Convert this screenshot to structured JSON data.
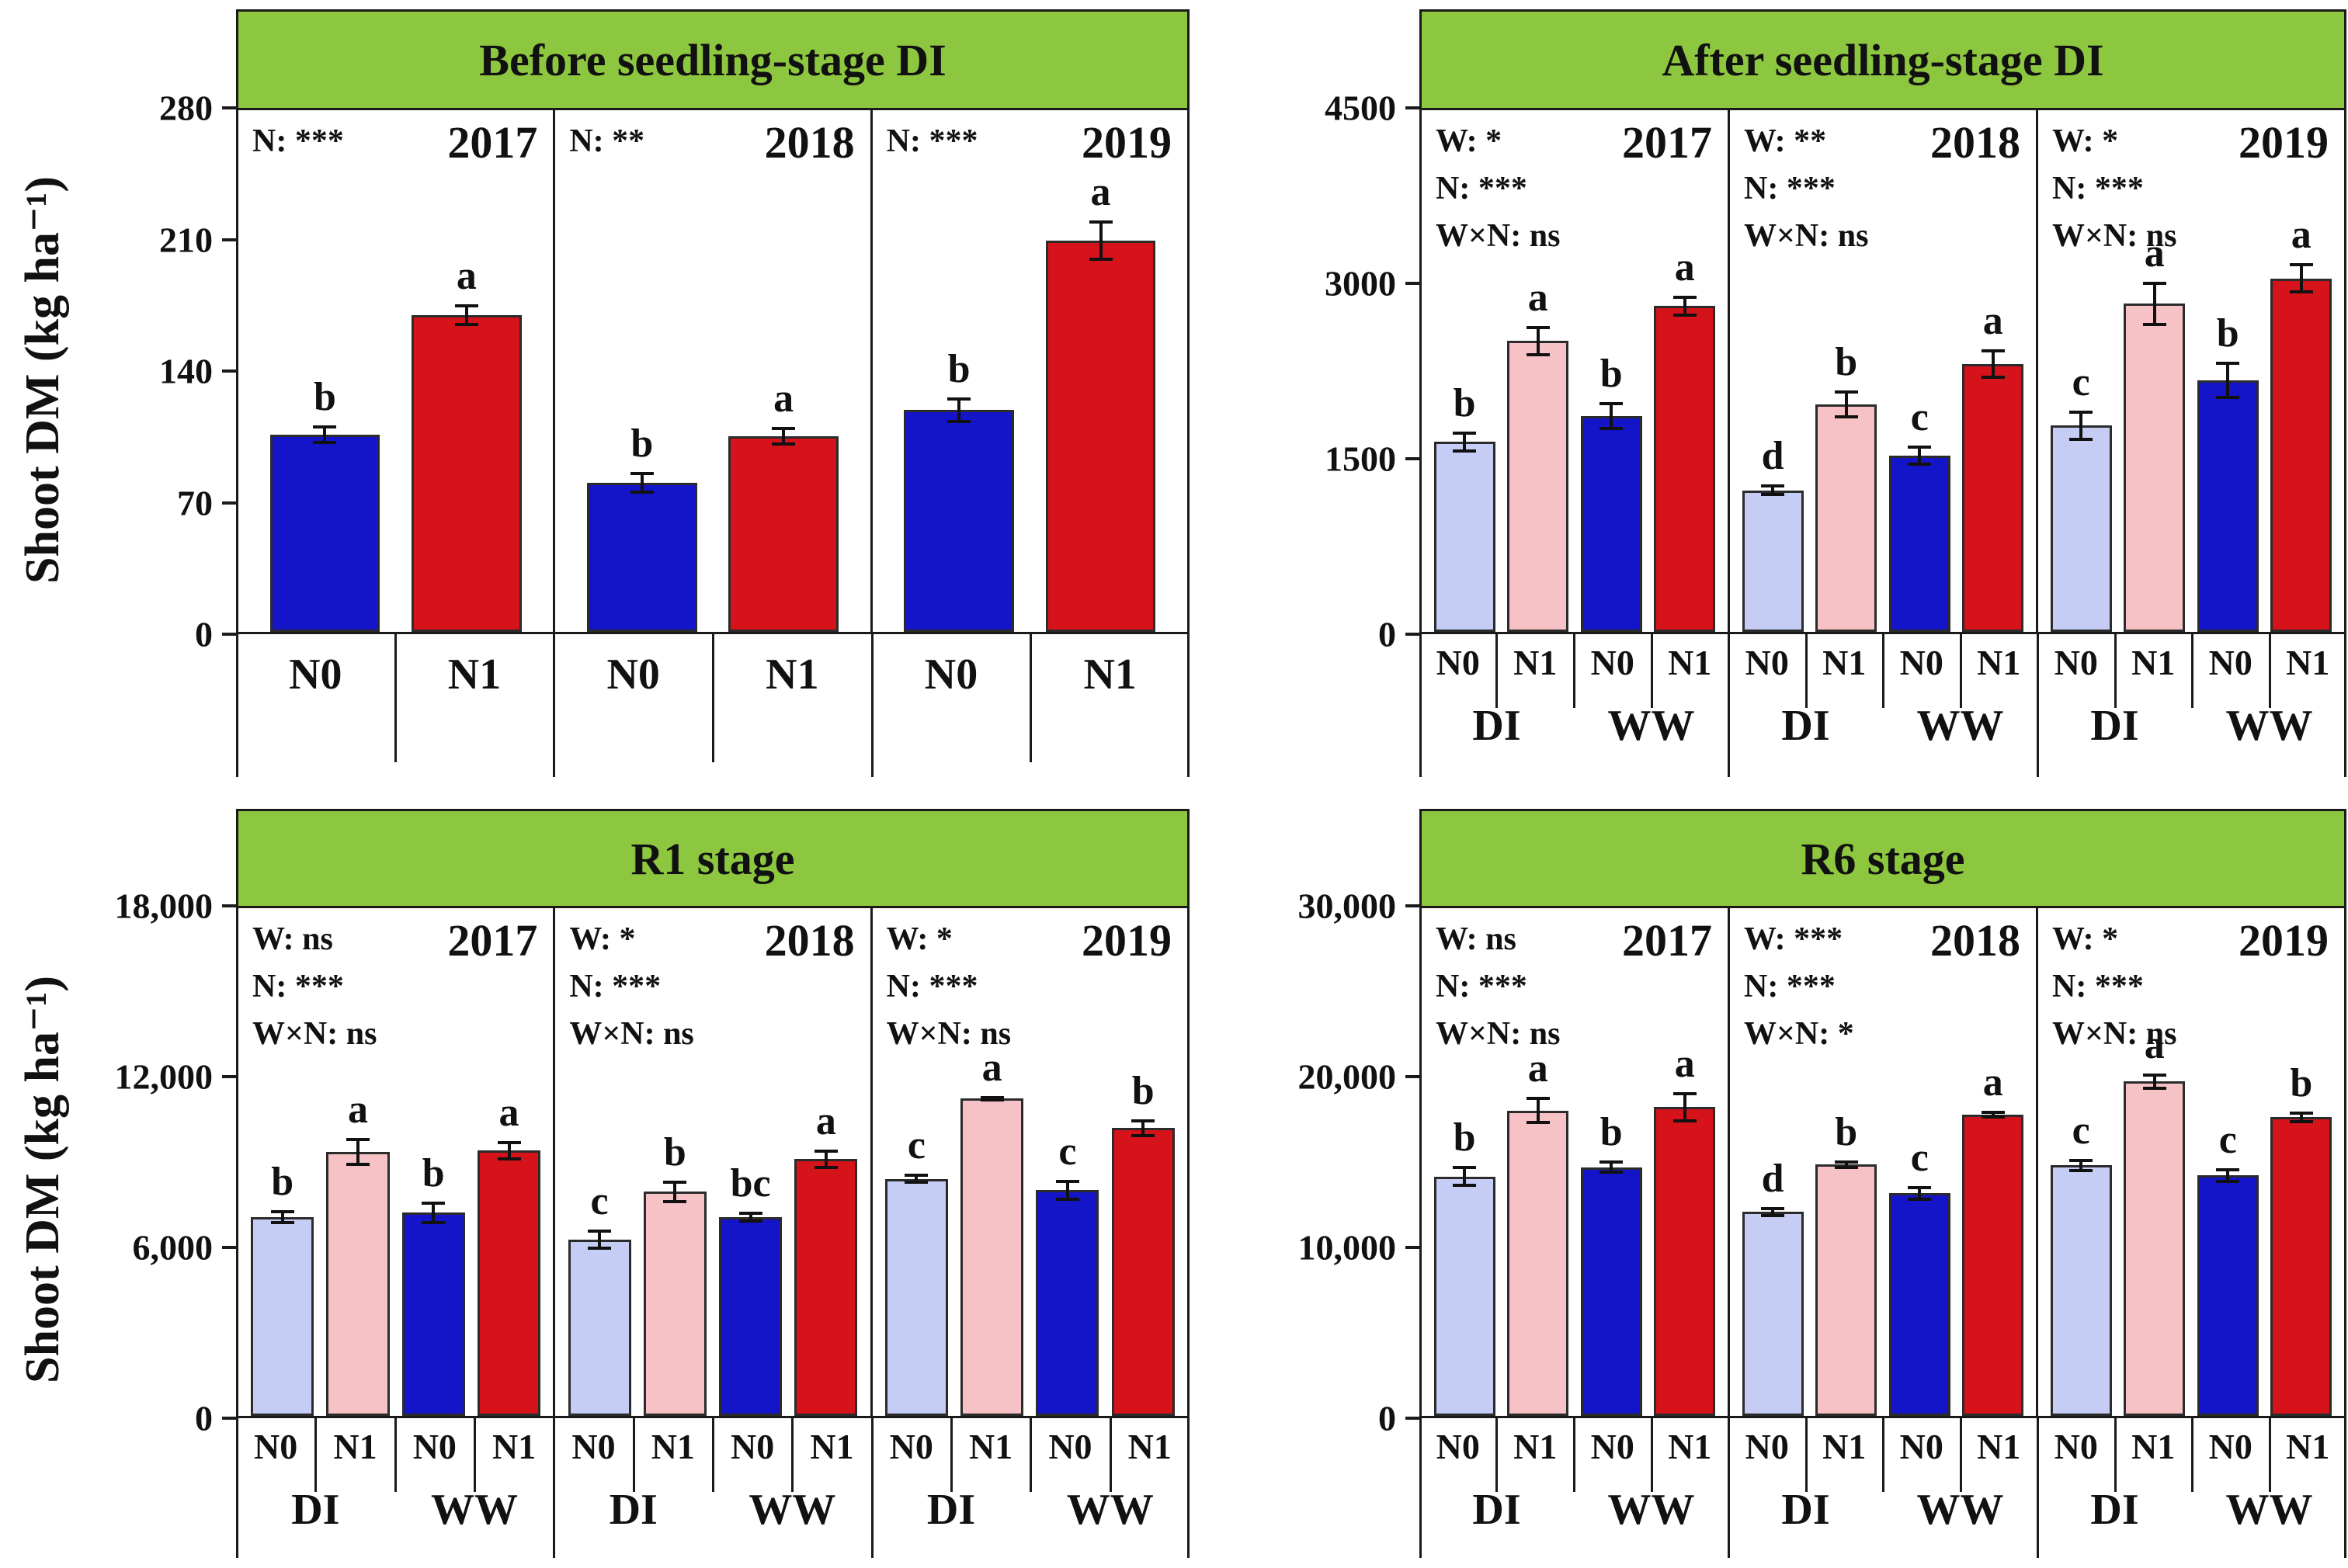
{
  "figure": {
    "y_axis_label": "Shoot DM (kg ha⁻¹)",
    "colors": {
      "header_green": "#8dc63f",
      "bar_dark_blue": "#1414c8",
      "bar_dark_red": "#d6121a",
      "bar_light_blue": "#c6cdf4",
      "bar_light_pink": "#f6c2c6",
      "bar_border": "#2b2b2b",
      "frame": "#1a1a1a"
    }
  },
  "chart_data": [
    {
      "type": "bar",
      "title": "Before seedling-stage DI",
      "ylabel": "Shoot DM (kg ha⁻¹)",
      "ylim": [
        0,
        280
      ],
      "grid": false,
      "layout": "two-bar",
      "yticks": [
        {
          "v": 0,
          "label": "0"
        },
        {
          "v": 70,
          "label": "70"
        },
        {
          "v": 140,
          "label": "140"
        },
        {
          "v": 210,
          "label": "210"
        },
        {
          "v": 280,
          "label": "280"
        }
      ],
      "years": [
        {
          "year": "2017",
          "stats": [
            "N: ***"
          ],
          "bars": [
            {
              "label": "N0",
              "color": "dark_blue",
              "value": 106,
              "error": 5,
              "letter": "b"
            },
            {
              "label": "N1",
              "color": "dark_red",
              "value": 170,
              "error": 6,
              "letter": "a"
            }
          ]
        },
        {
          "year": "2018",
          "stats": [
            "N: **"
          ],
          "bars": [
            {
              "label": "N0",
              "color": "dark_blue",
              "value": 80,
              "error": 6,
              "letter": "b"
            },
            {
              "label": "N1",
              "color": "dark_red",
              "value": 105,
              "error": 5,
              "letter": "a"
            }
          ]
        },
        {
          "year": "2019",
          "stats": [
            "N: ***"
          ],
          "bars": [
            {
              "label": "N0",
              "color": "dark_blue",
              "value": 119,
              "error": 7,
              "letter": "b"
            },
            {
              "label": "N1",
              "color": "dark_red",
              "value": 210,
              "error": 11,
              "letter": "a"
            }
          ]
        }
      ]
    },
    {
      "type": "bar",
      "title": "After seedling-stage DI",
      "ylabel": "Shoot DM (kg ha⁻¹)",
      "ylim": [
        0,
        4500
      ],
      "grid": false,
      "layout": "four-bar",
      "group_labels": [
        "DI",
        "WW"
      ],
      "yticks": [
        {
          "v": 0,
          "label": "0"
        },
        {
          "v": 1500,
          "label": "1500"
        },
        {
          "v": 3000,
          "label": "3000"
        },
        {
          "v": 4500,
          "label": "4500"
        }
      ],
      "years": [
        {
          "year": "2017",
          "stats": [
            "W: *",
            "N: ***",
            "W×N: ns"
          ],
          "bars": [
            {
              "group": "DI",
              "label": "N0",
              "color": "light_blue",
              "value": 1640,
              "error": 90,
              "letter": "b"
            },
            {
              "group": "DI",
              "label": "N1",
              "color": "light_pink",
              "value": 2510,
              "error": 130,
              "letter": "a"
            },
            {
              "group": "WW",
              "label": "N0",
              "color": "dark_blue",
              "value": 1860,
              "error": 120,
              "letter": "b"
            },
            {
              "group": "WW",
              "label": "N1",
              "color": "dark_red",
              "value": 2810,
              "error": 90,
              "letter": "a"
            }
          ]
        },
        {
          "year": "2018",
          "stats": [
            "W: **",
            "N: ***",
            "W×N: ns"
          ],
          "bars": [
            {
              "group": "DI",
              "label": "N0",
              "color": "light_blue",
              "value": 1220,
              "error": 50,
              "letter": "d"
            },
            {
              "group": "DI",
              "label": "N1",
              "color": "light_pink",
              "value": 1960,
              "error": 120,
              "letter": "b"
            },
            {
              "group": "WW",
              "label": "N0",
              "color": "dark_blue",
              "value": 1520,
              "error": 90,
              "letter": "c"
            },
            {
              "group": "WW",
              "label": "N1",
              "color": "dark_red",
              "value": 2310,
              "error": 130,
              "letter": "a"
            }
          ]
        },
        {
          "year": "2019",
          "stats": [
            "W: *",
            "N: ***",
            "W×N: ns"
          ],
          "bars": [
            {
              "group": "DI",
              "label": "N0",
              "color": "light_blue",
              "value": 1780,
              "error": 130,
              "letter": "c"
            },
            {
              "group": "DI",
              "label": "N1",
              "color": "light_pink",
              "value": 2830,
              "error": 190,
              "letter": "a"
            },
            {
              "group": "WW",
              "label": "N0",
              "color": "dark_blue",
              "value": 2170,
              "error": 160,
              "letter": "b"
            },
            {
              "group": "WW",
              "label": "N1",
              "color": "dark_red",
              "value": 3050,
              "error": 130,
              "letter": "a"
            }
          ]
        }
      ]
    },
    {
      "type": "bar",
      "title": "R1 stage",
      "ylabel": "Shoot DM (kg ha⁻¹)",
      "ylim": [
        0,
        18000
      ],
      "grid": false,
      "layout": "four-bar",
      "group_labels": [
        "DI",
        "WW"
      ],
      "yticks": [
        {
          "v": 0,
          "label": "0"
        },
        {
          "v": 6000,
          "label": "6,000"
        },
        {
          "v": 12000,
          "label": "12,000"
        },
        {
          "v": 18000,
          "label": "18,000"
        }
      ],
      "years": [
        {
          "year": "2017",
          "stats": [
            "W: ns",
            "N: ***",
            "W×N: ns"
          ],
          "bars": [
            {
              "group": "DI",
              "label": "N0",
              "color": "light_blue",
              "value": 7050,
              "error": 250,
              "letter": "b"
            },
            {
              "group": "DI",
              "label": "N1",
              "color": "light_pink",
              "value": 9350,
              "error": 500,
              "letter": "a"
            },
            {
              "group": "WW",
              "label": "N0",
              "color": "dark_blue",
              "value": 7200,
              "error": 400,
              "letter": "b"
            },
            {
              "group": "WW",
              "label": "N1",
              "color": "dark_red",
              "value": 9400,
              "error": 350,
              "letter": "a"
            }
          ]
        },
        {
          "year": "2018",
          "stats": [
            "W: *",
            "N: ***",
            "W×N: ns"
          ],
          "bars": [
            {
              "group": "DI",
              "label": "N0",
              "color": "light_blue",
              "value": 6250,
              "error": 350,
              "letter": "c"
            },
            {
              "group": "DI",
              "label": "N1",
              "color": "light_pink",
              "value": 7950,
              "error": 400,
              "letter": "b"
            },
            {
              "group": "WW",
              "label": "N0",
              "color": "dark_blue",
              "value": 7050,
              "error": 200,
              "letter": "bc"
            },
            {
              "group": "WW",
              "label": "N1",
              "color": "dark_red",
              "value": 9100,
              "error": 350,
              "letter": "a"
            }
          ]
        },
        {
          "year": "2019",
          "stats": [
            "W: *",
            "N: ***",
            "W×N: ns"
          ],
          "bars": [
            {
              "group": "DI",
              "label": "N0",
              "color": "light_blue",
              "value": 8400,
              "error": 180,
              "letter": "c"
            },
            {
              "group": "DI",
              "label": "N1",
              "color": "light_pink",
              "value": 11250,
              "error": 100,
              "letter": "a"
            },
            {
              "group": "WW",
              "label": "N0",
              "color": "dark_blue",
              "value": 8000,
              "error": 380,
              "letter": "c"
            },
            {
              "group": "WW",
              "label": "N1",
              "color": "dark_red",
              "value": 10200,
              "error": 320,
              "letter": "b"
            }
          ]
        }
      ]
    },
    {
      "type": "bar",
      "title": "R6 stage",
      "ylabel": "Shoot DM (kg ha⁻¹)",
      "ylim": [
        0,
        30000
      ],
      "grid": false,
      "layout": "four-bar",
      "group_labels": [
        "DI",
        "WW"
      ],
      "yticks": [
        {
          "v": 0,
          "label": "0"
        },
        {
          "v": 10000,
          "label": "10,000"
        },
        {
          "v": 20000,
          "label": "20,000"
        },
        {
          "v": 30000,
          "label": "30,000"
        }
      ],
      "years": [
        {
          "year": "2017",
          "stats": [
            "W: ns",
            "N: ***",
            "W×N: ns"
          ],
          "bars": [
            {
              "group": "DI",
              "label": "N0",
              "color": "light_blue",
              "value": 14150,
              "error": 600,
              "letter": "b"
            },
            {
              "group": "DI",
              "label": "N1",
              "color": "light_pink",
              "value": 18050,
              "error": 800,
              "letter": "a"
            },
            {
              "group": "WW",
              "label": "N0",
              "color": "dark_blue",
              "value": 14700,
              "error": 400,
              "letter": "b"
            },
            {
              "group": "WW",
              "label": "N1",
              "color": "dark_red",
              "value": 18250,
              "error": 900,
              "letter": "a"
            }
          ]
        },
        {
          "year": "2018",
          "stats": [
            "W: ***",
            "N: ***",
            "W×N: *"
          ],
          "bars": [
            {
              "group": "DI",
              "label": "N0",
              "color": "light_blue",
              "value": 12050,
              "error": 300,
              "letter": "d"
            },
            {
              "group": "DI",
              "label": "N1",
              "color": "light_pink",
              "value": 14850,
              "error": 250,
              "letter": "b"
            },
            {
              "group": "WW",
              "label": "N0",
              "color": "dark_blue",
              "value": 13150,
              "error": 450,
              "letter": "c"
            },
            {
              "group": "WW",
              "label": "N1",
              "color": "dark_red",
              "value": 17800,
              "error": 250,
              "letter": "a"
            }
          ]
        },
        {
          "year": "2019",
          "stats": [
            "W: *",
            "N: ***",
            "W×N: ns"
          ],
          "bars": [
            {
              "group": "DI",
              "label": "N0",
              "color": "light_blue",
              "value": 14800,
              "error": 400,
              "letter": "c"
            },
            {
              "group": "DI",
              "label": "N1",
              "color": "light_pink",
              "value": 19750,
              "error": 500,
              "letter": "a"
            },
            {
              "group": "WW",
              "label": "N0",
              "color": "dark_blue",
              "value": 14200,
              "error": 450,
              "letter": "c"
            },
            {
              "group": "WW",
              "label": "N1",
              "color": "dark_red",
              "value": 17650,
              "error": 350,
              "letter": "b"
            }
          ]
        }
      ]
    }
  ]
}
